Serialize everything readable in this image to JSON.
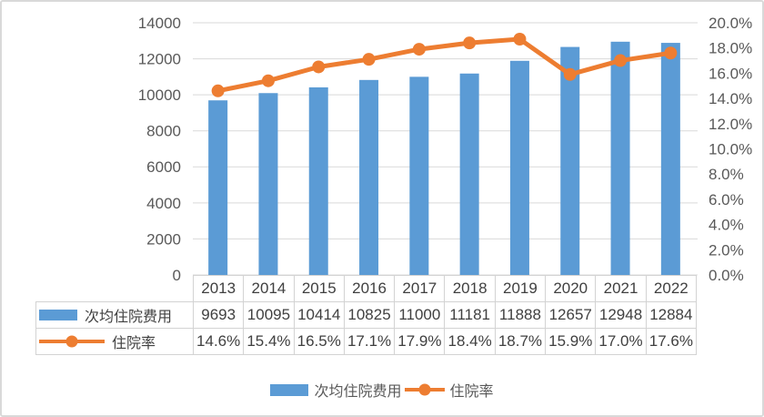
{
  "chart_data": {
    "type": "combo-bar-line",
    "categories": [
      "2013",
      "2014",
      "2015",
      "2016",
      "2017",
      "2018",
      "2019",
      "2020",
      "2021",
      "2022"
    ],
    "series": [
      {
        "name": "次均住院费用",
        "type": "bar",
        "axis": "left",
        "color": "#5B9BD5",
        "values": [
          9693,
          10095,
          10414,
          10825,
          11000,
          11181,
          11888,
          12657,
          12948,
          12884
        ],
        "labels": [
          "9693",
          "10095",
          "10414",
          "10825",
          "11000",
          "11181",
          "11888",
          "12657",
          "12948",
          "12884"
        ]
      },
      {
        "name": "住院率",
        "type": "line",
        "axis": "right",
        "color": "#ED7D31",
        "values": [
          14.6,
          15.4,
          16.5,
          17.1,
          17.9,
          18.4,
          18.7,
          15.9,
          17.0,
          17.6
        ],
        "labels": [
          "14.6%",
          "15.4%",
          "16.5%",
          "17.1%",
          "17.9%",
          "18.4%",
          "18.7%",
          "15.9%",
          "17.0%",
          "17.6%"
        ]
      }
    ],
    "left_axis": {
      "min": 0,
      "max": 14000,
      "step": 2000,
      "tick_labels": [
        "0",
        "2000",
        "4000",
        "6000",
        "8000",
        "10000",
        "12000",
        "14000"
      ]
    },
    "right_axis": {
      "min": 0,
      "max": 20,
      "step": 2,
      "tick_labels": [
        "0.0%",
        "2.0%",
        "4.0%",
        "6.0%",
        "8.0%",
        "10.0%",
        "12.0%",
        "14.0%",
        "16.0%",
        "18.0%",
        "20.0%"
      ]
    },
    "gridlines": true,
    "legend_position": "bottom",
    "colors": {
      "bar": "#5B9BD5",
      "line": "#ED7D31",
      "gridline": "#D9D9D9",
      "table_border": "#D3D3D3",
      "axis_text": "#595959",
      "table_text": "#404040"
    }
  }
}
